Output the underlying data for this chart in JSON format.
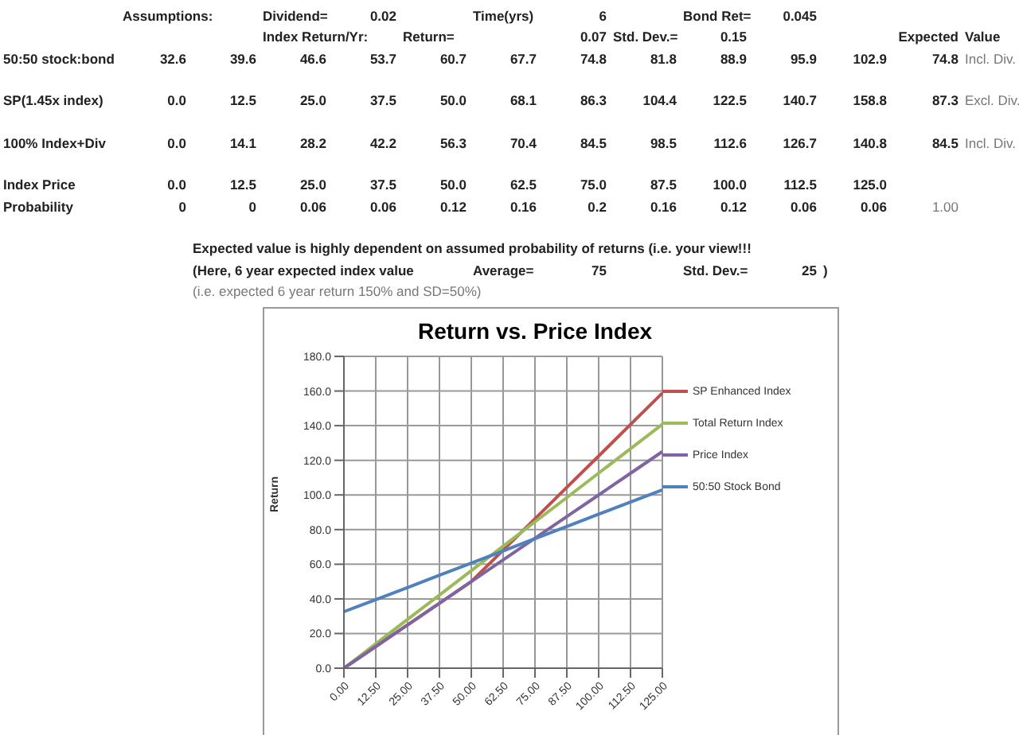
{
  "chart_data": {
    "type": "line",
    "title": "Return vs. Price Index",
    "ylabel": "Return",
    "categories": [
      "0.00",
      "12.50",
      "25.00",
      "37.50",
      "50.00",
      "62.50",
      "75.00",
      "87.50",
      "100.00",
      "112.50",
      "125.00"
    ],
    "series": [
      {
        "name": "SP Enhanced Index",
        "color": "#c0504d",
        "values": [
          0,
          12.5,
          25,
          37.5,
          50,
          68.1,
          86.3,
          104.4,
          122.5,
          140.7,
          158.8
        ]
      },
      {
        "name": "Total Return Index",
        "color": "#9bbb59",
        "values": [
          0,
          14.1,
          28.2,
          42.2,
          56.3,
          70.4,
          84.5,
          98.5,
          112.6,
          126.7,
          140.8
        ]
      },
      {
        "name": "Price Index",
        "color": "#8064a2",
        "values": [
          0,
          12.5,
          25,
          37.5,
          50,
          62.5,
          75,
          87.5,
          100,
          112.5,
          125
        ]
      },
      {
        "name": "50:50 Stock Bond",
        "color": "#4f81bd",
        "values": [
          32.6,
          39.6,
          46.6,
          53.7,
          60.7,
          67.7,
          74.8,
          81.8,
          88.9,
          95.9,
          102.9
        ]
      }
    ],
    "ylim": [
      0,
      180
    ],
    "yticks": [
      {
        "value": 0,
        "label": "0.0"
      },
      {
        "value": 20,
        "label": "20.0"
      },
      {
        "value": 40,
        "label": "40.0"
      },
      {
        "value": 60,
        "label": "60.0"
      },
      {
        "value": 80,
        "label": "80.0"
      },
      {
        "value": 100,
        "label": "100.0"
      },
      {
        "value": 120,
        "label": "120.0"
      },
      {
        "value": 140,
        "label": "140.0"
      },
      {
        "value": 160,
        "label": "160.0"
      },
      {
        "value": 180,
        "label": "180.0"
      }
    ],
    "grid": true,
    "legend": "right",
    "marker": "none",
    "line_style": "solid",
    "annotations": [
      "Assumptions:",
      "Dividend=",
      "0.02",
      "Time(yrs)",
      "6",
      "Bond Ret=",
      "0.045",
      "Index Return/Yr:",
      "Return=",
      "0.07",
      "Std. Dev.=",
      "0.15",
      "Expected",
      "Value",
      "50:50 stock:bond",
      "32.6",
      "39.6",
      "46.6",
      "53.7",
      "60.7",
      "67.7",
      "74.8",
      "81.8",
      "88.9",
      "95.9",
      "102.9",
      "74.8",
      "Incl. Div.",
      "SP(1.45x index)",
      "0.0",
      "12.5",
      "25.0",
      "37.5",
      "50.0",
      "68.1",
      "86.3",
      "104.4",
      "122.5",
      "140.7",
      "158.8",
      "87.3",
      "Excl. Div.",
      "100% Index+Div",
      "0.0",
      "14.1",
      "28.2",
      "42.2",
      "56.3",
      "70.4",
      "84.5",
      "98.5",
      "112.6",
      "126.7",
      "140.8",
      "84.5",
      "Incl. Div.",
      "Index Price",
      "0.0",
      "12.5",
      "25.0",
      "37.5",
      "50.0",
      "62.5",
      "75.0",
      "87.5",
      "100.0",
      "112.5",
      "125.0",
      "Probability",
      "0",
      "0",
      "0.06",
      "0.06",
      "0.12",
      "0.16",
      "0.2",
      "0.16",
      "0.12",
      "0.06",
      "0.06",
      "1.00",
      "Expected value is highly dependent on assumed probability of  returns (i.e. your view!!!",
      "(Here, 6 year expected index value",
      "Average=",
      "75",
      "Std. Dev.=",
      "25",
      ")",
      "(i.e. expected 6 year return 150% and SD=50%)"
    ]
  }
}
